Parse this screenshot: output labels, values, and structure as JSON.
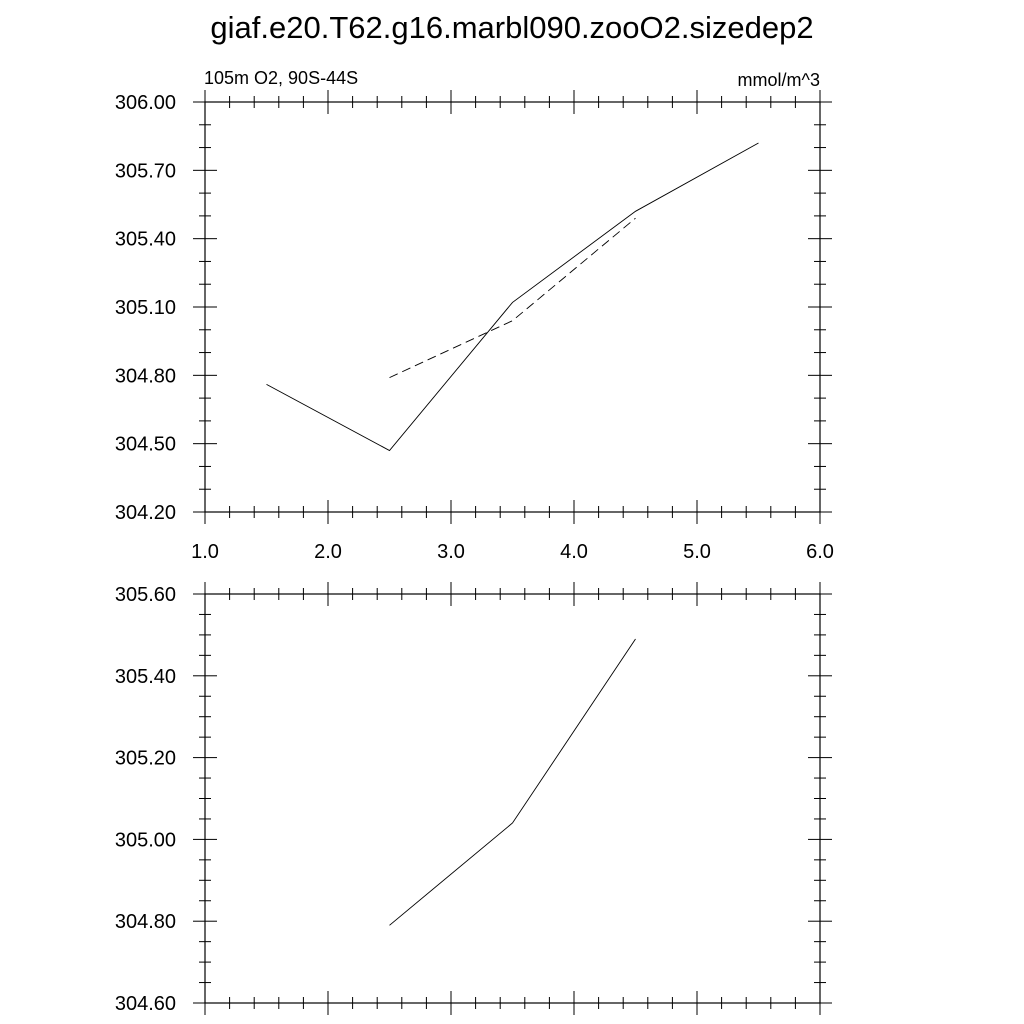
{
  "title": "giaf.e20.T62.g16.marbl090.zooO2.sizedep2",
  "chart_data": [
    {
      "type": "line",
      "left_label": "105m O2, 90S-44S",
      "right_label": "mmol/m^3",
      "xlim": [
        1.0,
        6.0
      ],
      "ylim": [
        304.2,
        306.0
      ],
      "x_ticks": [
        "1.0",
        "2.0",
        "3.0",
        "4.0",
        "5.0",
        "6.0"
      ],
      "y_ticks": [
        "304.20",
        "304.50",
        "304.80",
        "305.10",
        "305.40",
        "305.70",
        "306.00"
      ],
      "series": [
        {
          "style": "solid",
          "x": [
            1.5,
            2.5,
            3.5,
            4.5,
            5.5
          ],
          "y": [
            304.76,
            304.47,
            305.12,
            305.52,
            305.82
          ]
        },
        {
          "style": "dashed",
          "x": [
            2.5,
            3.5,
            4.5
          ],
          "y": [
            304.79,
            305.04,
            305.49
          ]
        }
      ]
    },
    {
      "type": "line",
      "xlim": [
        1.0,
        6.0
      ],
      "ylim": [
        304.6,
        305.6
      ],
      "x_ticks": [],
      "y_ticks": [
        "304.60",
        "304.80",
        "305.00",
        "305.20",
        "305.40",
        "305.60"
      ],
      "series": [
        {
          "style": "solid",
          "x": [
            2.5,
            3.5,
            4.5
          ],
          "y": [
            304.79,
            305.04,
            305.49
          ]
        }
      ]
    }
  ]
}
